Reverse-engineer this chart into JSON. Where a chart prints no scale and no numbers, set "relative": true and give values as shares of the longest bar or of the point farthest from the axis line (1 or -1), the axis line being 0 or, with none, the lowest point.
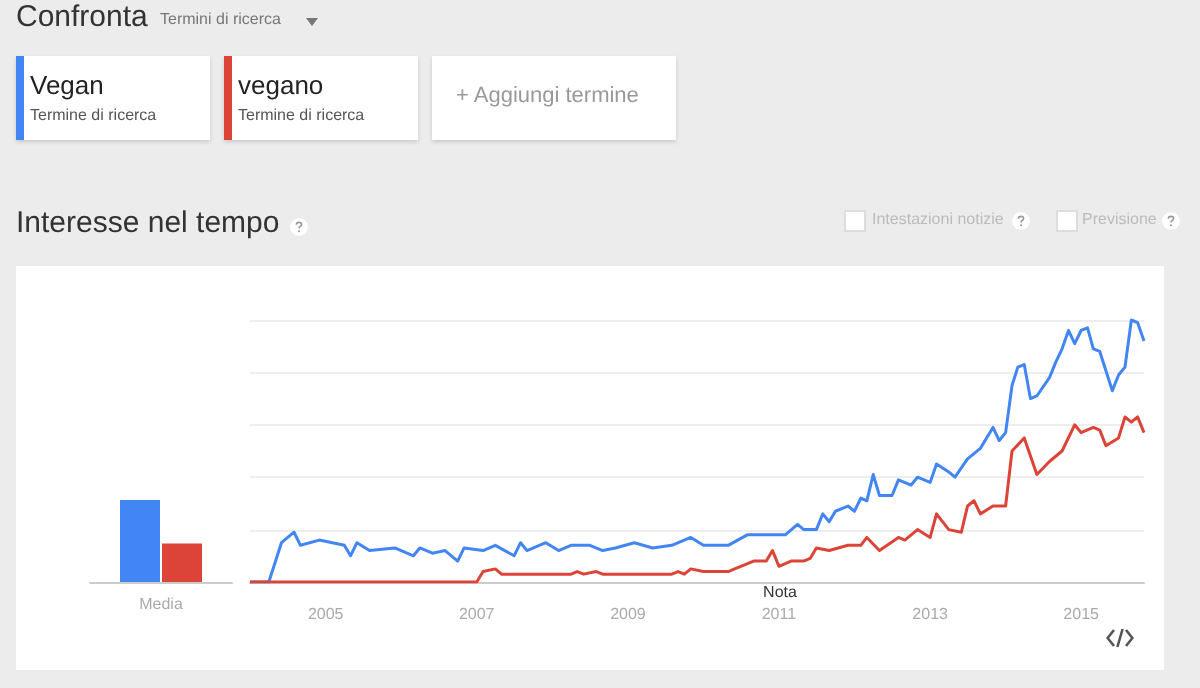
{
  "chart_data": [
    {
      "type": "bar",
      "title": "Interesse nel tempo",
      "categories": [
        "Media"
      ],
      "relative": true,
      "annotations": [
        "Confronta",
        "Termini di ricerca",
        "Termine di ricerca",
        "Termine di ricerca",
        "+ Aggiungi termine",
        "Intestazioni notizie",
        "Previsione"
      ],
      "series": [
        {
          "color": "#4285f4",
          "values": [
            1
          ]
        },
        {
          "color": "#db4437",
          "values": [
            0.47
          ]
        }
      ]
    },
    {
      "type": "line",
      "relative": true,
      "legend": "top left",
      "grid": "y",
      "marker": "none",
      "xlim": [
        "2004-01",
        "2015-11"
      ],
      "xticks": [
        "2005",
        "2007",
        "2009",
        "2011",
        "2013",
        "2015"
      ],
      "annotations": [
        "Nota"
      ],
      "series": [
        {
          "name": "Vegan",
          "color": "#4285f4",
          "x": [
            "2004-01",
            "2004-04",
            "2004-06",
            "2004-08",
            "2004-09",
            "2004-12",
            "2005-04",
            "2005-05",
            "2005-06",
            "2005-08",
            "2005-12",
            "2006-03",
            "2006-04",
            "2006-06",
            "2006-08",
            "2006-10",
            "2006-11",
            "2007-02",
            "2007-04",
            "2007-07",
            "2007-08",
            "2007-09",
            "2007-12",
            "2008-02",
            "2008-04",
            "2008-07",
            "2008-09",
            "2008-11",
            "2009-02",
            "2009-05",
            "2009-08",
            "2009-11",
            "2010-01",
            "2010-05",
            "2010-08",
            "2010-12",
            "2011-02",
            "2011-04",
            "2011-05",
            "2011-07",
            "2011-08",
            "2011-09",
            "2011-10",
            "2011-12",
            "2012-01",
            "2012-02",
            "2012-03",
            "2012-04",
            "2012-05",
            "2012-07",
            "2012-08",
            "2012-10",
            "2012-11",
            "2013-01",
            "2013-02",
            "2013-04",
            "2013-05",
            "2013-07",
            "2013-09",
            "2013-10",
            "2013-11",
            "2013-12",
            "2014-01",
            "2014-02",
            "2014-03",
            "2014-04",
            "2014-05",
            "2014-06",
            "2014-08",
            "2014-09",
            "2014-10",
            "2014-11",
            "2014-12",
            "2015-01",
            "2015-02",
            "2015-03",
            "2015-04",
            "2015-06",
            "2015-07",
            "2015-08",
            "2015-09",
            "2015-10",
            "2015-11"
          ],
          "values": [
            0,
            0,
            0.15,
            0.19,
            0.14,
            0.16,
            0.14,
            0.1,
            0.15,
            0.12,
            0.13,
            0.1,
            0.13,
            0.11,
            0.12,
            0.08,
            0.13,
            0.12,
            0.14,
            0.1,
            0.15,
            0.12,
            0.15,
            0.12,
            0.14,
            0.14,
            0.12,
            0.13,
            0.15,
            0.13,
            0.14,
            0.17,
            0.14,
            0.14,
            0.18,
            0.18,
            0.18,
            0.22,
            0.2,
            0.2,
            0.26,
            0.23,
            0.27,
            0.29,
            0.27,
            0.32,
            0.31,
            0.41,
            0.33,
            0.33,
            0.39,
            0.37,
            0.4,
            0.38,
            0.45,
            0.42,
            0.4,
            0.47,
            0.51,
            0.55,
            0.59,
            0.54,
            0.57,
            0.75,
            0.82,
            0.83,
            0.7,
            0.71,
            0.78,
            0.84,
            0.89,
            0.96,
            0.91,
            0.96,
            0.97,
            0.89,
            0.88,
            0.73,
            0.79,
            0.82,
            1,
            0.99,
            0.92
          ]
        },
        {
          "name": "vegano",
          "color": "#db4437",
          "x": [
            "2004-01",
            "2007-01",
            "2007-02",
            "2007-04",
            "2007-05",
            "2008-04",
            "2008-05",
            "2008-06",
            "2008-08",
            "2008-09",
            "2009-08",
            "2009-09",
            "2009-10",
            "2009-11",
            "2010-01",
            "2010-05",
            "2010-06",
            "2010-09",
            "2010-11",
            "2010-12",
            "2011-01",
            "2011-03",
            "2011-05",
            "2011-06",
            "2011-07",
            "2011-09",
            "2011-12",
            "2012-02",
            "2012-03",
            "2012-05",
            "2012-08",
            "2012-09",
            "2012-11",
            "2013-01",
            "2013-02",
            "2013-04",
            "2013-06",
            "2013-07",
            "2013-08",
            "2013-09",
            "2013-11",
            "2013-12",
            "2014-01",
            "2014-02",
            "2014-04",
            "2014-06",
            "2014-08",
            "2014-10",
            "2014-12",
            "2015-01",
            "2015-03",
            "2015-04",
            "2015-05",
            "2015-07",
            "2015-08",
            "2015-09",
            "2015-10",
            "2015-11"
          ],
          "values": [
            0,
            0,
            0.04,
            0.05,
            0.03,
            0.03,
            0.04,
            0.03,
            0.04,
            0.03,
            0.03,
            0.04,
            0.03,
            0.05,
            0.04,
            0.04,
            0.05,
            0.08,
            0.08,
            0.12,
            0.06,
            0.08,
            0.08,
            0.09,
            0.13,
            0.12,
            0.14,
            0.14,
            0.17,
            0.12,
            0.17,
            0.16,
            0.2,
            0.17,
            0.26,
            0.2,
            0.19,
            0.29,
            0.31,
            0.26,
            0.29,
            0.29,
            0.29,
            0.5,
            0.55,
            0.41,
            0.46,
            0.5,
            0.6,
            0.57,
            0.59,
            0.58,
            0.52,
            0.55,
            0.63,
            0.61,
            0.63,
            0.57
          ]
        }
      ]
    }
  ]
}
